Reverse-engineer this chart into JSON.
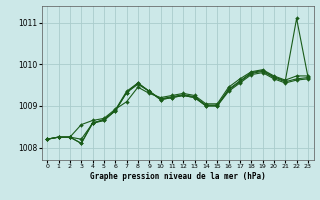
{
  "title": "Graphe pression niveau de la mer (hPa)",
  "background_color": "#cce8e8",
  "grid_color": "#aacccc",
  "line_color": "#1a5c1a",
  "xlim": [
    -0.5,
    23.5
  ],
  "ylim": [
    1007.7,
    1011.4
  ],
  "yticks": [
    1008,
    1009,
    1010,
    1011
  ],
  "xticks": [
    0,
    1,
    2,
    3,
    4,
    5,
    6,
    7,
    8,
    9,
    10,
    11,
    12,
    13,
    14,
    15,
    16,
    17,
    18,
    19,
    20,
    21,
    22,
    23
  ],
  "series": [
    [
      1008.2,
      1008.25,
      1008.25,
      1008.1,
      1008.6,
      1008.65,
      1008.9,
      1009.35,
      1009.55,
      1009.35,
      1009.15,
      1009.2,
      1009.25,
      1009.2,
      1009.0,
      1009.0,
      1009.4,
      1009.6,
      1009.8,
      1009.85,
      1009.7,
      1009.6,
      1011.1,
      1009.7
    ],
    [
      1008.2,
      1008.25,
      1008.25,
      1008.55,
      1008.65,
      1008.7,
      1008.92,
      1009.1,
      1009.45,
      1009.3,
      1009.2,
      1009.25,
      1009.3,
      1009.25,
      1009.05,
      1009.05,
      1009.45,
      1009.65,
      1009.82,
      1009.87,
      1009.72,
      1009.62,
      1009.72,
      1009.72
    ],
    [
      1008.2,
      1008.25,
      1008.25,
      1008.2,
      1008.58,
      1008.68,
      1008.88,
      1009.32,
      1009.52,
      1009.35,
      1009.17,
      1009.22,
      1009.27,
      1009.22,
      1009.02,
      1009.02,
      1009.38,
      1009.58,
      1009.78,
      1009.83,
      1009.68,
      1009.58,
      1009.65,
      1009.68
    ],
    [
      1008.2,
      1008.25,
      1008.25,
      1008.1,
      1008.58,
      1008.65,
      1008.88,
      1009.32,
      1009.55,
      1009.35,
      1009.15,
      1009.2,
      1009.25,
      1009.2,
      1009.0,
      1009.0,
      1009.35,
      1009.55,
      1009.75,
      1009.8,
      1009.65,
      1009.55,
      1009.62,
      1009.65
    ]
  ]
}
